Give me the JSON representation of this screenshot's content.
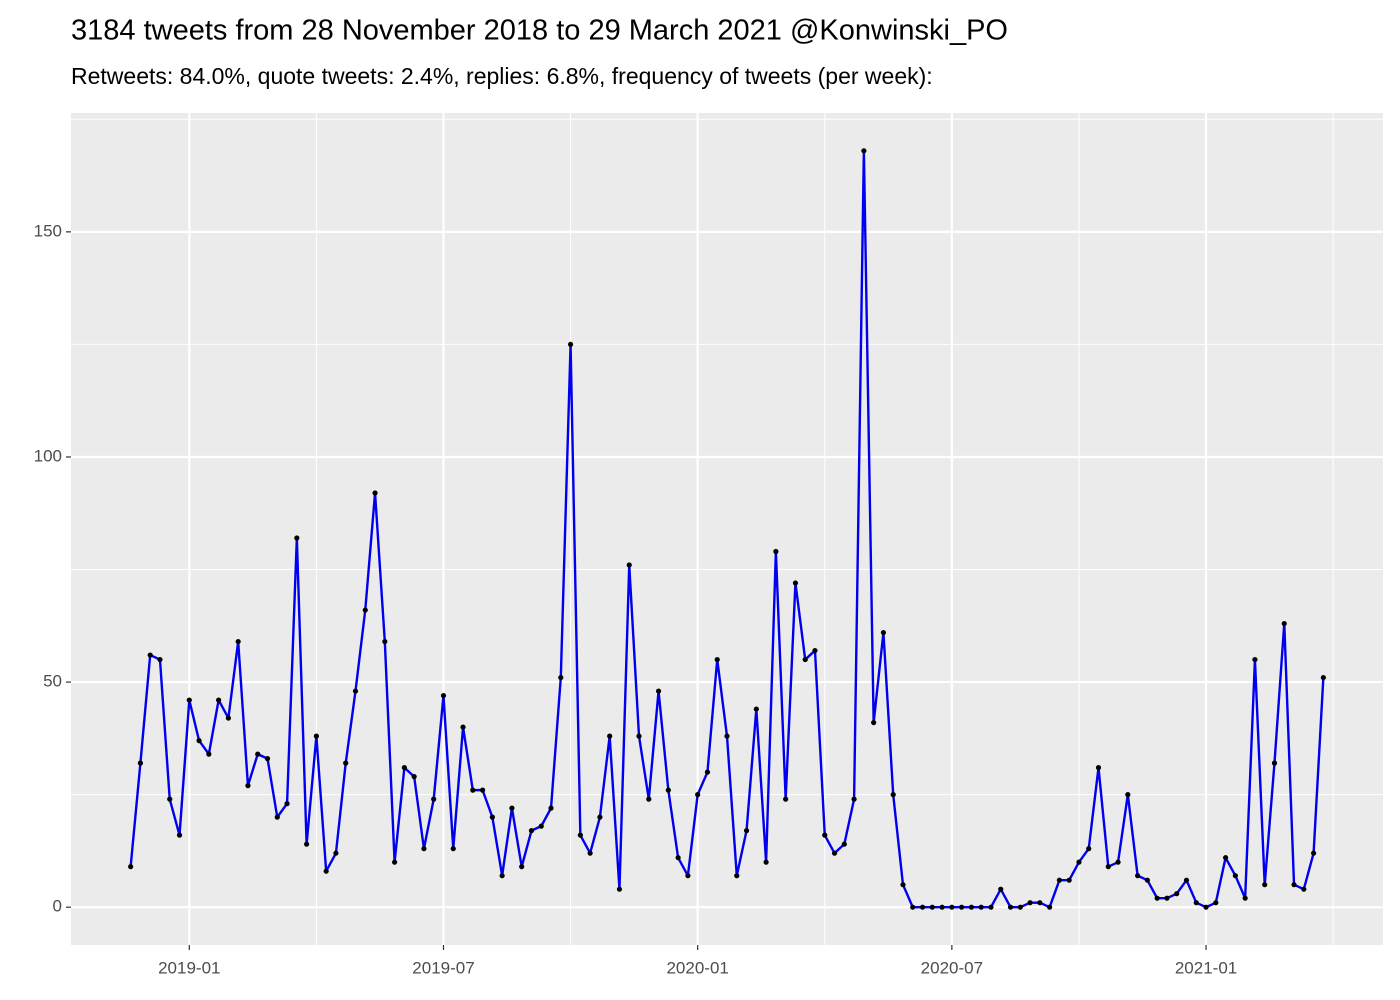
{
  "chart_data": {
    "type": "line",
    "title": "3184 tweets from 28 November 2018 to 29 March 2021 @Konwinski_PO",
    "subtitle": "Retweets: 84.0%, quote tweets: 2.4%, replies: 6.8%, frequency of tweets (per week):",
    "categories": [
      null,
      null,
      null,
      null,
      null,
      null,
      "2019-01",
      null,
      null,
      null,
      null,
      null,
      null,
      null,
      null,
      null,
      null,
      null,
      null,
      null,
      null,
      null,
      null,
      null,
      null,
      null,
      null,
      null,
      null,
      null,
      null,
      null,
      "2019-07",
      null,
      null,
      null,
      null,
      null,
      null,
      null,
      null,
      null,
      null,
      null,
      null,
      null,
      null,
      null,
      null,
      null,
      null,
      null,
      null,
      null,
      null,
      null,
      null,
      null,
      "2020-01",
      null,
      null,
      null,
      null,
      null,
      null,
      null,
      null,
      null,
      null,
      null,
      null,
      null,
      null,
      null,
      null,
      null,
      null,
      null,
      null,
      null,
      null,
      null,
      null,
      null,
      "2020-07",
      null,
      null,
      null,
      null,
      null,
      null,
      null,
      null,
      null,
      null,
      null,
      null,
      null,
      null,
      null,
      null,
      null,
      null,
      null,
      null,
      null,
      null,
      null,
      null,
      null,
      "2021-01",
      null,
      null,
      null,
      null,
      null,
      null,
      null,
      null,
      null,
      null,
      null,
      null
    ],
    "series": [
      {
        "color": "#0000ee",
        "values": [
          9,
          32,
          56,
          55,
          24,
          16,
          46,
          37,
          34,
          46,
          42,
          59,
          27,
          34,
          33,
          20,
          23,
          82,
          14,
          38,
          8,
          12,
          32,
          48,
          66,
          92,
          59,
          10,
          31,
          29,
          13,
          24,
          47,
          13,
          40,
          26,
          26,
          20,
          7,
          22,
          9,
          17,
          18,
          22,
          51,
          125,
          16,
          12,
          20,
          38,
          4,
          76,
          38,
          24,
          48,
          26,
          11,
          7,
          25,
          30,
          55,
          38,
          7,
          17,
          44,
          10,
          79,
          24,
          72,
          55,
          57,
          16,
          12,
          14,
          24,
          168,
          41,
          61,
          25,
          5,
          0,
          0,
          0,
          0,
          0,
          0,
          0,
          0,
          0,
          4,
          0,
          0,
          1,
          1,
          0,
          6,
          6,
          10,
          13,
          31,
          9,
          10,
          25,
          7,
          6,
          2,
          2,
          3,
          6,
          1,
          0,
          1,
          11,
          7,
          2,
          55,
          5,
          32,
          63,
          5,
          4,
          12,
          51
        ]
      }
    ],
    "point_color": "#000000",
    "ylim": [
      -8.4,
      176.4
    ],
    "yticks": [
      0,
      50,
      100,
      150
    ],
    "grid": true
  }
}
